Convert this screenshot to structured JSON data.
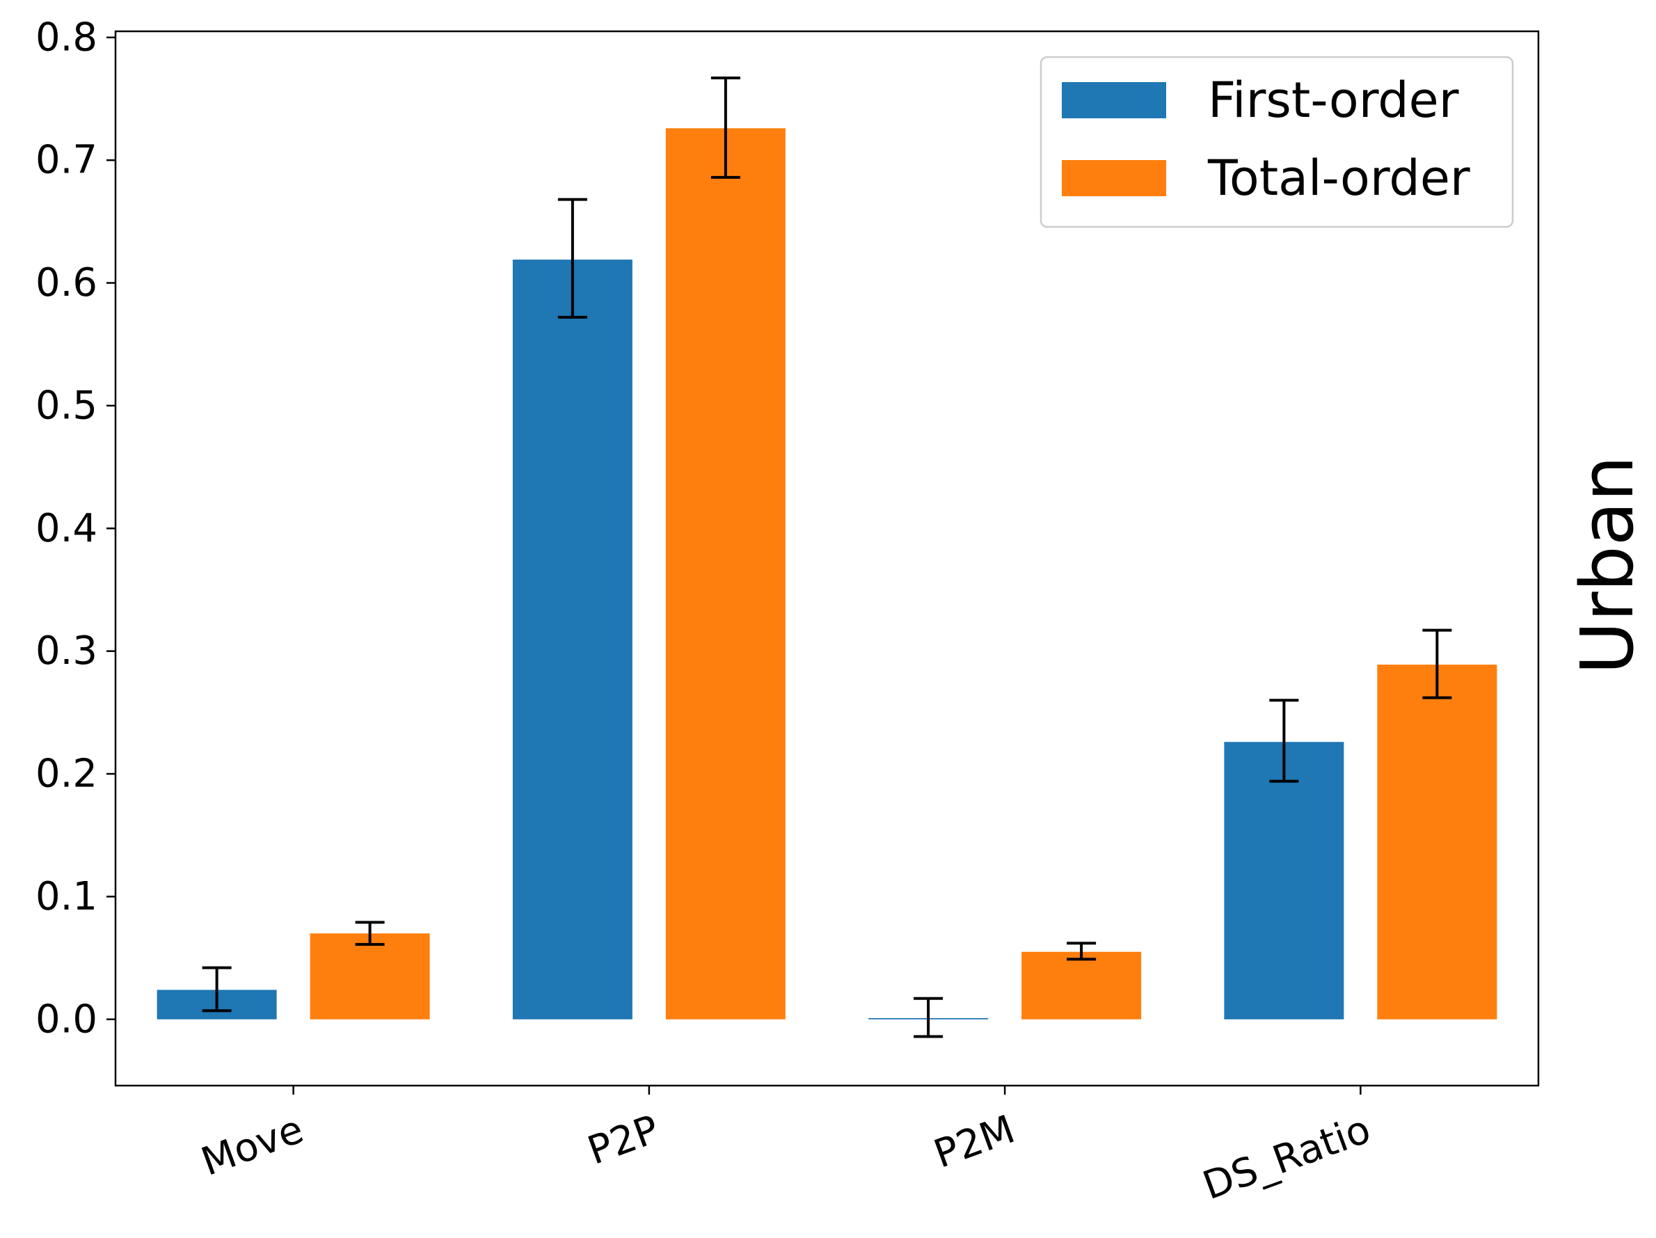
{
  "chart_data": {
    "type": "bar",
    "title": "",
    "xlabel": "",
    "ylabel": "",
    "right_label": "Urban",
    "categories": [
      "Move",
      "P2P",
      "P2M",
      "DS_Ratio"
    ],
    "series": [
      {
        "name": "First-order",
        "color": "#1f77b4",
        "values": [
          0.024,
          0.619,
          0.001,
          0.226
        ],
        "err_low": [
          0.007,
          0.572,
          -0.014,
          0.194
        ],
        "err_high": [
          0.042,
          0.668,
          0.017,
          0.26
        ]
      },
      {
        "name": "Total-order",
        "color": "#ff7f0e",
        "values": [
          0.07,
          0.726,
          0.055,
          0.289
        ],
        "err_low": [
          0.061,
          0.686,
          0.049,
          0.262
        ],
        "err_high": [
          0.079,
          0.767,
          0.062,
          0.317
        ]
      }
    ],
    "ylim": [
      -0.054,
      0.805
    ],
    "yticks": [
      "0.0",
      "0.1",
      "0.2",
      "0.3",
      "0.4",
      "0.5",
      "0.6",
      "0.7",
      "0.8"
    ],
    "legend_position": "top-right",
    "grid": false
  }
}
